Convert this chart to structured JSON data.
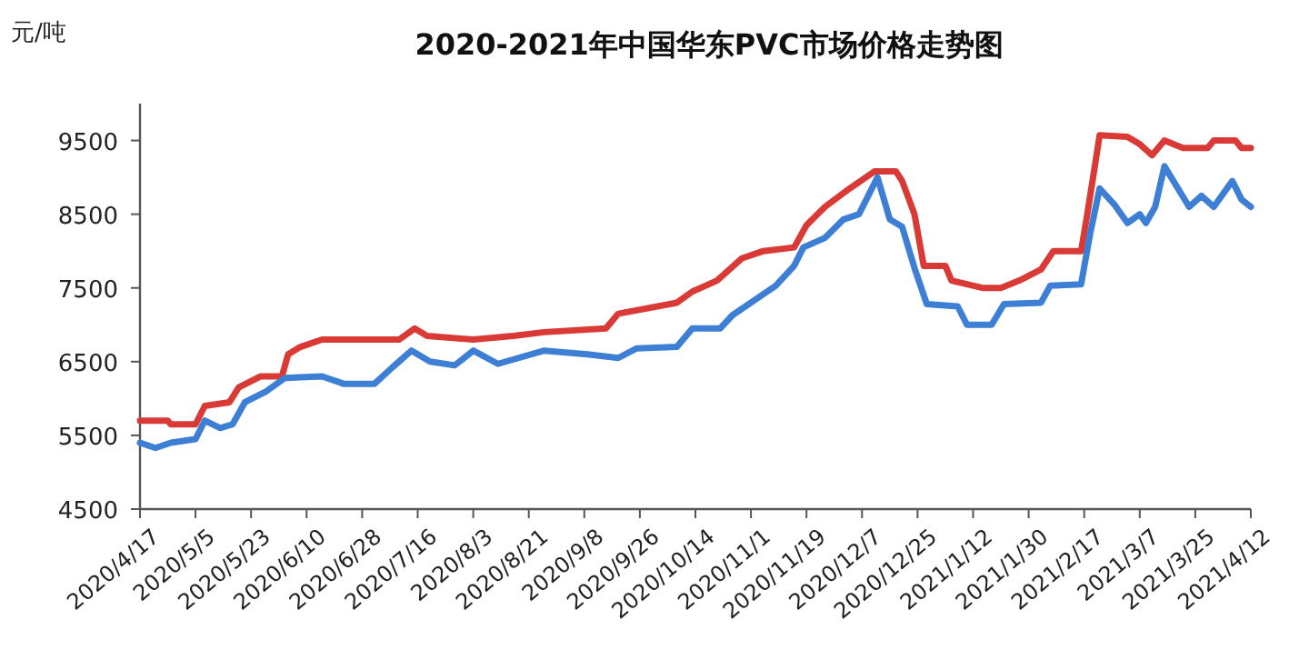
{
  "chart_data": {
    "type": "line",
    "title": "2020-2021年中国华东PVC市场价格走势图",
    "ylabel": "元/吨",
    "ylim": [
      4500,
      10000
    ],
    "yticks": [
      4500,
      5500,
      6500,
      7500,
      8500,
      9500
    ],
    "xlim": [
      "2020-04-17",
      "2021-04-12"
    ],
    "xticks": [
      {
        "value": "2020-04-17",
        "label": "2020/4/17"
      },
      {
        "value": "2020-05-05",
        "label": "2020/5/5"
      },
      {
        "value": "2020-05-23",
        "label": "2020/5/23"
      },
      {
        "value": "2020-06-10",
        "label": "2020/6/10"
      },
      {
        "value": "2020-06-28",
        "label": "2020/6/28"
      },
      {
        "value": "2020-07-16",
        "label": "2020/7/16"
      },
      {
        "value": "2020-08-03",
        "label": "2020/8/3"
      },
      {
        "value": "2020-08-21",
        "label": "2020/8/21"
      },
      {
        "value": "2020-09-08",
        "label": "2020/9/8"
      },
      {
        "value": "2020-09-26",
        "label": "2020/9/26"
      },
      {
        "value": "2020-10-14",
        "label": "2020/10/14"
      },
      {
        "value": "2020-11-01",
        "label": "2020/11/1"
      },
      {
        "value": "2020-11-19",
        "label": "2020/11/19"
      },
      {
        "value": "2020-12-07",
        "label": "2020/12/7"
      },
      {
        "value": "2020-12-25",
        "label": "2020/12/25"
      },
      {
        "value": "2021-01-12",
        "label": "2021/1/12"
      },
      {
        "value": "2021-01-30",
        "label": "2021/1/30"
      },
      {
        "value": "2021-02-17",
        "label": "2021/2/17"
      },
      {
        "value": "2021-03-07",
        "label": "2021/3/7"
      },
      {
        "value": "2021-03-25",
        "label": "2021/3/25"
      },
      {
        "value": "2021-04-12",
        "label": "2021/4/12"
      }
    ],
    "grid": false,
    "marker": "none",
    "line_style": "solid",
    "series": [
      {
        "color": "#d93a35",
        "x": [
          "2020-04-17",
          "2020-04-26",
          "2020-04-27",
          "2020-05-05",
          "2020-05-08",
          "2020-05-16",
          "2020-05-19",
          "2020-05-26",
          "2020-06-02",
          "2020-06-04",
          "2020-06-08",
          "2020-06-15",
          "2020-07-10",
          "2020-07-15",
          "2020-07-19",
          "2020-08-03",
          "2020-08-16",
          "2020-08-26",
          "2020-09-15",
          "2020-09-19",
          "2020-10-08",
          "2020-10-13",
          "2020-10-21",
          "2020-10-29",
          "2020-11-05",
          "2020-11-15",
          "2020-11-19",
          "2020-11-25",
          "2020-12-03",
          "2020-12-11",
          "2020-12-18",
          "2020-12-20",
          "2020-12-24",
          "2020-12-27",
          "2021-01-03",
          "2021-01-05",
          "2021-01-15",
          "2021-01-21",
          "2021-01-27",
          "2021-02-03",
          "2021-02-07",
          "2021-02-16",
          "2021-02-18",
          "2021-02-22",
          "2021-03-03",
          "2021-03-07",
          "2021-03-11",
          "2021-03-15",
          "2021-03-21",
          "2021-03-29",
          "2021-03-31",
          "2021-04-07",
          "2021-04-09",
          "2021-04-12"
        ],
        "values": [
          5700,
          5700,
          5650,
          5650,
          5900,
          5950,
          6150,
          6300,
          6300,
          6600,
          6700,
          6800,
          6800,
          6950,
          6850,
          6800,
          6850,
          6900,
          6950,
          7150,
          7300,
          7450,
          7600,
          7900,
          8000,
          8050,
          8350,
          8600,
          8850,
          9080,
          9080,
          8950,
          8500,
          7800,
          7800,
          7600,
          7500,
          7500,
          7600,
          7750,
          8000,
          8000,
          8500,
          9570,
          9550,
          9450,
          9300,
          9500,
          9400,
          9400,
          9500,
          9500,
          9400,
          9400
        ]
      },
      {
        "color": "#3d7fd4",
        "x": [
          "2020-04-17",
          "2020-04-22",
          "2020-04-27",
          "2020-05-05",
          "2020-05-08",
          "2020-05-13",
          "2020-05-17",
          "2020-05-21",
          "2020-05-28",
          "2020-06-03",
          "2020-06-15",
          "2020-06-22",
          "2020-07-02",
          "2020-07-08",
          "2020-07-14",
          "2020-07-20",
          "2020-07-28",
          "2020-08-03",
          "2020-08-11",
          "2020-08-26",
          "2020-09-09",
          "2020-09-19",
          "2020-09-25",
          "2020-10-08",
          "2020-10-13",
          "2020-10-22",
          "2020-10-26",
          "2020-11-01",
          "2020-11-09",
          "2020-11-15",
          "2020-11-18",
          "2020-11-25",
          "2020-12-01",
          "2020-12-06",
          "2020-12-12",
          "2020-12-16",
          "2020-12-20",
          "2020-12-24",
          "2020-12-28",
          "2021-01-07",
          "2021-01-10",
          "2021-01-18",
          "2021-01-22",
          "2021-02-03",
          "2021-02-06",
          "2021-02-16",
          "2021-02-19",
          "2021-02-22",
          "2021-02-27",
          "2021-03-03",
          "2021-03-07",
          "2021-03-09",
          "2021-03-12",
          "2021-03-15",
          "2021-03-23",
          "2021-03-27",
          "2021-03-31",
          "2021-04-06",
          "2021-04-09",
          "2021-04-12"
        ],
        "values": [
          5400,
          5330,
          5400,
          5450,
          5700,
          5600,
          5650,
          5950,
          6100,
          6280,
          6300,
          6200,
          6200,
          6430,
          6650,
          6500,
          6450,
          6650,
          6470,
          6650,
          6600,
          6550,
          6680,
          6700,
          6950,
          6950,
          7130,
          7300,
          7530,
          7800,
          8050,
          8180,
          8430,
          8500,
          9000,
          8430,
          8330,
          7770,
          7280,
          7250,
          7000,
          7000,
          7280,
          7300,
          7530,
          7550,
          8250,
          8850,
          8620,
          8380,
          8500,
          8380,
          8600,
          9150,
          8600,
          8750,
          8600,
          8950,
          8700,
          8600
        ]
      }
    ]
  }
}
